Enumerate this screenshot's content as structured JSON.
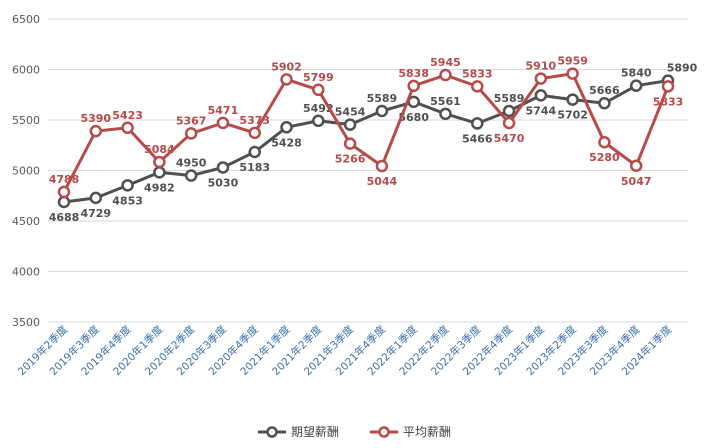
{
  "chart_data": {
    "type": "line",
    "title": "",
    "xlabel": "",
    "ylabel": "",
    "ylim": [
      3500,
      6500
    ],
    "yticks": [
      3500,
      4000,
      4500,
      5000,
      5500,
      6000,
      6500
    ],
    "grid": true,
    "legend_position": "bottom",
    "categories": [
      "2019年2季度",
      "2019年3季度",
      "2019年4季度",
      "2020年1季度",
      "2020年2季度",
      "2020年3季度",
      "2020年4季度",
      "2021年1季度",
      "2021年2季度",
      "2021年3季度",
      "2021年4季度",
      "2022年1季度",
      "2022年2季度",
      "2022年3季度",
      "2022年4季度",
      "2023年1季度",
      "2023年2季度",
      "2023年3季度",
      "2023年4季度",
      "2024年1季度"
    ],
    "series": [
      {
        "name": "期望薪酬",
        "color": "#505050",
        "values": [
          4688,
          4729,
          4853,
          4982,
          4950,
          5030,
          5183,
          5428,
          5492,
          5454,
          5589,
          5680,
          5561,
          5466,
          5589,
          5744,
          5702,
          5666,
          5840,
          5890
        ]
      },
      {
        "name": "平均薪酬",
        "color": "#b84a4a",
        "values": [
          4788,
          5390,
          5423,
          5084,
          5367,
          5471,
          5373,
          5902,
          5799,
          5266,
          5044,
          5838,
          5945,
          5833,
          5470,
          5910,
          5959,
          5280,
          5047,
          5833
        ]
      }
    ]
  }
}
